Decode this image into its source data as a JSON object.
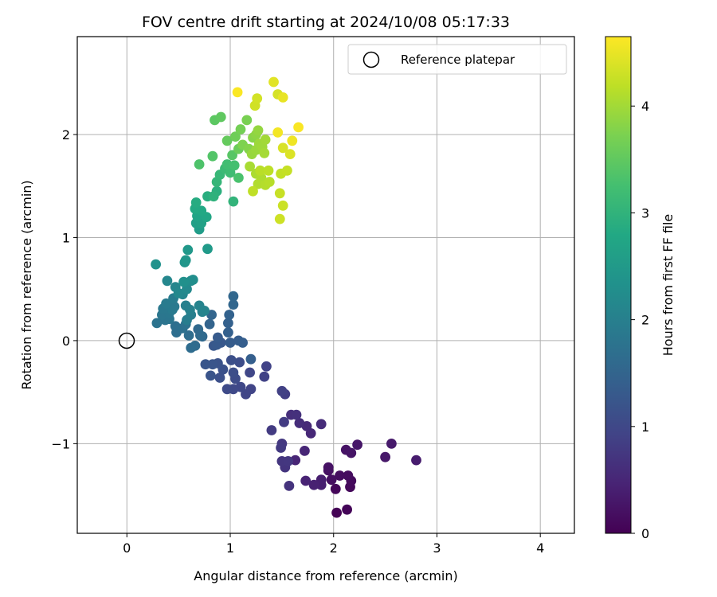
{
  "chart_data": {
    "type": "scatter",
    "title": "FOV centre drift starting at 2024/10/08 05:17:33",
    "xlabel": "Angular distance from reference (arcmin)",
    "ylabel": "Rotation from reference (arcmin)",
    "colorbar_label": "Hours from first FF file",
    "xlim": [
      -0.48,
      4.33
    ],
    "ylim": [
      -1.87,
      2.95
    ],
    "clim": [
      0,
      4.65
    ],
    "x_ticks": [
      0,
      1,
      2,
      3,
      4
    ],
    "y_ticks": [
      -1,
      0,
      1,
      2
    ],
    "colorbar_ticks": [
      0,
      1,
      2,
      3,
      4
    ],
    "x_tick_labels": [
      "0",
      "1",
      "2",
      "3",
      "4"
    ],
    "y_tick_labels": [
      "−1",
      "0",
      "1",
      "2"
    ],
    "colorbar_tick_labels": [
      "0",
      "1",
      "2",
      "3",
      "4"
    ],
    "grid": true,
    "legend": {
      "placement": "top-right",
      "entries": [
        "Reference platepar"
      ]
    },
    "reference_point": {
      "name": "Reference platepar",
      "x": 0,
      "y": 0
    },
    "colormap": "viridis",
    "series": [
      {
        "points": [
          [
            2.03,
            -1.67,
            0.02
          ],
          [
            2.13,
            -1.64,
            0.05
          ],
          [
            2.02,
            -1.44,
            0.08
          ],
          [
            2.16,
            -1.42,
            0.1
          ],
          [
            2.17,
            -1.36,
            0.12
          ],
          [
            2.14,
            -1.31,
            0.14
          ],
          [
            2.06,
            -1.31,
            0.16
          ],
          [
            1.98,
            -1.35,
            0.18
          ],
          [
            1.95,
            -1.26,
            0.2
          ],
          [
            1.95,
            -1.23,
            0.22
          ],
          [
            2.12,
            -1.06,
            0.24
          ],
          [
            2.17,
            -1.09,
            0.26
          ],
          [
            2.23,
            -1.01,
            0.28
          ],
          [
            2.5,
            -1.13,
            0.3
          ],
          [
            2.56,
            -1.0,
            0.33
          ],
          [
            2.8,
            -1.16,
            0.36
          ],
          [
            1.88,
            -1.35,
            0.38
          ],
          [
            1.88,
            -1.4,
            0.4
          ],
          [
            1.81,
            -1.4,
            0.42
          ],
          [
            1.73,
            -1.36,
            0.45
          ],
          [
            1.63,
            -1.16,
            0.48
          ],
          [
            1.72,
            -1.07,
            0.5
          ],
          [
            1.78,
            -0.9,
            0.52
          ],
          [
            1.74,
            -0.83,
            0.55
          ],
          [
            1.88,
            -0.81,
            0.58
          ],
          [
            1.67,
            -0.8,
            0.6
          ],
          [
            1.59,
            -0.72,
            0.62
          ],
          [
            1.64,
            -0.72,
            0.65
          ],
          [
            1.57,
            -1.41,
            0.68
          ],
          [
            1.53,
            -1.23,
            0.7
          ],
          [
            1.5,
            -1.17,
            0.72
          ],
          [
            1.56,
            -1.17,
            0.74
          ],
          [
            1.5,
            -1.0,
            0.76
          ],
          [
            1.49,
            -1.04,
            0.78
          ],
          [
            1.4,
            -0.87,
            0.8
          ],
          [
            1.52,
            -0.79,
            0.82
          ],
          [
            1.53,
            -0.52,
            0.85
          ],
          [
            1.5,
            -0.49,
            0.88
          ],
          [
            1.33,
            -0.35,
            0.9
          ],
          [
            1.35,
            -0.25,
            0.92
          ],
          [
            1.2,
            -0.47,
            0.94
          ],
          [
            1.15,
            -0.52,
            0.96
          ],
          [
            1.19,
            -0.31,
            0.98
          ],
          [
            1.1,
            -0.45,
            1.0
          ],
          [
            1.03,
            -0.47,
            1.02
          ],
          [
            0.97,
            -0.47,
            1.04
          ],
          [
            1.05,
            -0.37,
            1.06
          ],
          [
            1.09,
            -0.21,
            1.08
          ],
          [
            1.03,
            -0.31,
            1.1
          ],
          [
            1.01,
            -0.19,
            1.12
          ],
          [
            0.9,
            -0.36,
            1.14
          ],
          [
            0.93,
            -0.28,
            1.16
          ],
          [
            0.88,
            -0.22,
            1.18
          ],
          [
            0.81,
            -0.34,
            1.2
          ],
          [
            0.83,
            -0.23,
            1.22
          ],
          [
            0.76,
            -0.23,
            1.24
          ],
          [
            0.84,
            -0.05,
            1.26
          ],
          [
            0.91,
            -0.02,
            1.28
          ],
          [
            0.87,
            -0.04,
            1.3
          ],
          [
            0.88,
            0.03,
            1.32
          ],
          [
            1.0,
            -0.02,
            1.34
          ],
          [
            1.08,
            0.0,
            1.36
          ],
          [
            1.12,
            -0.02,
            1.38
          ],
          [
            1.2,
            -0.18,
            1.4
          ],
          [
            0.98,
            0.08,
            1.42
          ],
          [
            0.98,
            0.17,
            1.44
          ],
          [
            0.99,
            0.25,
            1.46
          ],
          [
            0.8,
            0.16,
            1.48
          ],
          [
            0.82,
            0.25,
            1.5
          ],
          [
            1.03,
            0.35,
            1.52
          ],
          [
            1.03,
            0.43,
            1.54
          ],
          [
            0.73,
            0.04,
            1.56
          ],
          [
            0.69,
            0.11,
            1.58
          ],
          [
            0.71,
            0.05,
            1.6
          ],
          [
            0.66,
            -0.05,
            1.62
          ],
          [
            0.62,
            -0.07,
            1.64
          ],
          [
            0.6,
            0.05,
            1.66
          ],
          [
            0.48,
            0.08,
            1.68
          ],
          [
            0.47,
            0.14,
            1.7
          ],
          [
            0.54,
            0.12,
            1.72
          ],
          [
            0.57,
            0.16,
            1.74
          ],
          [
            0.29,
            0.17,
            1.76
          ],
          [
            0.37,
            0.2,
            1.78
          ],
          [
            0.41,
            0.21,
            1.8
          ],
          [
            0.34,
            0.25,
            1.82
          ],
          [
            0.41,
            0.27,
            1.84
          ],
          [
            0.35,
            0.31,
            1.86
          ],
          [
            0.46,
            0.33,
            1.88
          ],
          [
            0.44,
            0.3,
            1.9
          ],
          [
            0.38,
            0.36,
            1.92
          ],
          [
            0.45,
            0.41,
            1.94
          ],
          [
            0.58,
            0.2,
            1.96
          ],
          [
            0.62,
            0.25,
            1.98
          ],
          [
            0.57,
            0.34,
            2.0
          ],
          [
            0.61,
            0.3,
            2.02
          ],
          [
            0.73,
            0.28,
            2.04
          ],
          [
            0.7,
            0.34,
            2.06
          ],
          [
            0.75,
            0.29,
            2.08
          ],
          [
            0.54,
            0.45,
            2.1
          ],
          [
            0.47,
            0.52,
            2.12
          ],
          [
            0.39,
            0.58,
            2.14
          ],
          [
            0.5,
            0.46,
            2.16
          ],
          [
            0.58,
            0.5,
            2.18
          ],
          [
            0.57,
            0.56,
            2.2
          ],
          [
            0.62,
            0.58,
            2.23
          ],
          [
            0.64,
            0.59,
            2.26
          ],
          [
            0.55,
            0.57,
            2.3
          ],
          [
            0.28,
            0.74,
            2.34
          ],
          [
            0.56,
            0.76,
            2.38
          ],
          [
            0.57,
            0.78,
            2.42
          ],
          [
            0.59,
            0.88,
            2.46
          ],
          [
            0.78,
            0.89,
            2.5
          ],
          [
            0.7,
            1.08,
            2.55
          ],
          [
            0.67,
            1.14,
            2.6
          ],
          [
            0.72,
            1.14,
            2.65
          ],
          [
            0.68,
            1.21,
            2.7
          ],
          [
            0.77,
            1.2,
            2.74
          ],
          [
            0.72,
            1.26,
            2.78
          ],
          [
            0.66,
            1.28,
            2.82
          ],
          [
            0.67,
            1.34,
            2.86
          ],
          [
            0.78,
            1.4,
            2.9
          ],
          [
            0.87,
            1.45,
            2.94
          ],
          [
            0.84,
            1.4,
            2.98
          ],
          [
            1.03,
            1.35,
            3.02
          ],
          [
            0.87,
            1.54,
            3.06
          ],
          [
            0.9,
            1.61,
            3.1
          ],
          [
            0.95,
            1.67,
            3.14
          ],
          [
            1.0,
            1.63,
            3.18
          ],
          [
            0.97,
            1.71,
            3.22
          ],
          [
            1.04,
            1.7,
            3.26
          ],
          [
            1.08,
            1.58,
            3.3
          ],
          [
            0.7,
            1.71,
            3.34
          ],
          [
            0.83,
            1.79,
            3.38
          ],
          [
            1.02,
            1.8,
            3.42
          ],
          [
            0.85,
            2.14,
            3.46
          ],
          [
            0.91,
            2.17,
            3.5
          ],
          [
            0.97,
            1.94,
            3.54
          ],
          [
            1.08,
            1.86,
            3.58
          ],
          [
            1.05,
            1.98,
            3.62
          ],
          [
            1.1,
            2.05,
            3.66
          ],
          [
            1.16,
            2.14,
            3.7
          ],
          [
            1.12,
            1.9,
            3.74
          ],
          [
            1.18,
            1.86,
            3.78
          ],
          [
            1.22,
            1.97,
            3.82
          ],
          [
            1.25,
            2.0,
            3.86
          ],
          [
            1.27,
            2.04,
            3.9
          ],
          [
            1.21,
            1.81,
            3.92
          ],
          [
            1.25,
            1.85,
            3.94
          ],
          [
            1.28,
            1.91,
            3.96
          ],
          [
            1.31,
            1.88,
            3.98
          ],
          [
            1.34,
            1.95,
            4.0
          ],
          [
            1.33,
            1.82,
            4.02
          ],
          [
            1.19,
            1.69,
            4.04
          ],
          [
            1.25,
            1.62,
            4.06
          ],
          [
            1.3,
            1.58,
            4.08
          ],
          [
            1.27,
            1.52,
            4.1
          ],
          [
            1.34,
            1.51,
            4.12
          ],
          [
            1.38,
            1.54,
            4.14
          ],
          [
            1.29,
            1.65,
            4.16
          ],
          [
            1.37,
            1.65,
            4.18
          ],
          [
            1.22,
            1.45,
            4.2
          ],
          [
            1.49,
            1.62,
            4.22
          ],
          [
            1.55,
            1.65,
            4.24
          ],
          [
            1.48,
            1.43,
            4.26
          ],
          [
            1.51,
            1.31,
            4.28
          ],
          [
            1.48,
            1.18,
            4.3
          ],
          [
            1.24,
            2.28,
            4.32
          ],
          [
            1.26,
            2.35,
            4.34
          ],
          [
            1.46,
            2.39,
            4.36
          ],
          [
            1.51,
            1.87,
            4.38
          ],
          [
            1.58,
            1.81,
            4.4
          ],
          [
            1.42,
            2.51,
            4.45
          ],
          [
            1.51,
            2.36,
            4.5
          ],
          [
            1.6,
            1.94,
            4.55
          ],
          [
            1.46,
            2.02,
            4.58
          ],
          [
            1.66,
            2.07,
            4.62
          ],
          [
            1.07,
            2.41,
            4.63
          ]
        ]
      }
    ]
  }
}
